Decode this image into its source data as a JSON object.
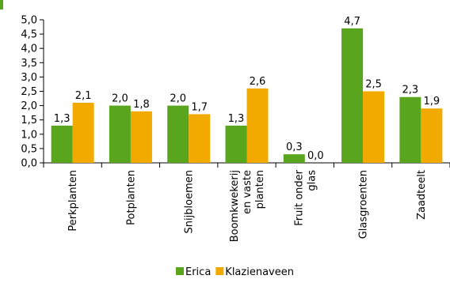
{
  "chart_data": {
    "type": "bar",
    "title": "",
    "xlabel": "",
    "ylabel": "",
    "ylim": [
      0,
      5
    ],
    "yticks": [
      "0,0",
      "0,5",
      "1,0",
      "1,5",
      "2,0",
      "2,5",
      "3,0",
      "3,5",
      "4,0",
      "4,5",
      "5,0"
    ],
    "categories": [
      "Perkplanten",
      "Potplanten",
      "Snijbloemen",
      "Boomkwekerij en vaste planten",
      "Fruit onder glas",
      "Glasgroenten",
      "Zaadteelt"
    ],
    "category_lines": [
      [
        "Perkplanten"
      ],
      [
        "Potplanten"
      ],
      [
        "Snijbloemen"
      ],
      [
        "Boomkwekerij",
        "en vaste",
        "planten"
      ],
      [
        "Fruit onder",
        "glas"
      ],
      [
        "Glasgroenten"
      ],
      [
        "Zaadteelt"
      ]
    ],
    "series": [
      {
        "name": "Erica",
        "color": "#5aa51e",
        "values": [
          1.3,
          2.0,
          2.0,
          1.3,
          0.3,
          4.7,
          2.3
        ],
        "labels": [
          "1,3",
          "2,0",
          "2,0",
          "1,3",
          "0,3",
          "4,7",
          "2,3"
        ]
      },
      {
        "name": "Klazienaveen",
        "color": "#f2a900",
        "values": [
          2.1,
          1.8,
          1.7,
          2.6,
          0.0,
          2.5,
          1.9
        ],
        "labels": [
          "2,1",
          "1,8",
          "1,7",
          "2,6",
          "0,0",
          "2,5",
          "1,9"
        ]
      }
    ],
    "legend_position": "bottom",
    "grid": false
  }
}
